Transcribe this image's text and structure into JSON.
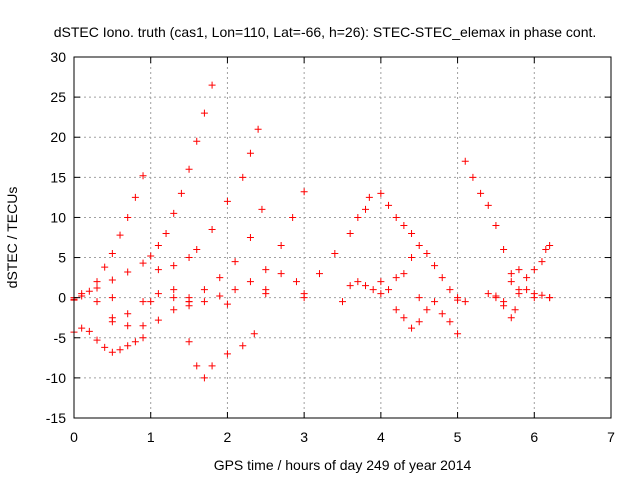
{
  "chart_data": {
    "type": "scatter",
    "title": "dSTEC Iono. truth (cas1, Lon=110, Lat=-66, h=26): STEC-STEC_elemax in phase cont.",
    "xlabel": "GPS time / hours of day 249 of year 2014",
    "ylabel": "dSTEC  / TECUs",
    "xlim": [
      0,
      7
    ],
    "ylim": [
      -15,
      30
    ],
    "xticks": [
      0,
      1,
      2,
      3,
      4,
      5,
      6,
      7
    ],
    "yticks": [
      -15,
      -10,
      -5,
      0,
      5,
      10,
      15,
      20,
      25,
      30
    ],
    "grid": true,
    "marker": "+",
    "color": "#ff0000",
    "series": [
      {
        "x": [
          0.0,
          0.1,
          0.2,
          0.3,
          0.4,
          0.5,
          0.6,
          0.7,
          0.8,
          0.9
        ],
        "y": [
          -0.3,
          0.2,
          0.8,
          2.0,
          3.8,
          5.5,
          7.8,
          10.0,
          12.5,
          15.2
        ]
      },
      {
        "x": [
          0.0,
          0.1,
          0.2,
          0.3,
          0.4,
          0.5,
          0.6,
          0.7,
          0.8,
          0.9
        ],
        "y": [
          -4.3,
          -3.8,
          -4.2,
          -5.3,
          -6.2,
          -6.8,
          -6.5,
          -6.0,
          -5.5,
          -5.0
        ]
      },
      {
        "x": [
          0.1,
          0.3,
          0.5,
          0.7,
          0.9,
          1.0,
          1.1,
          1.2,
          1.3,
          1.4,
          1.5,
          1.6,
          1.7,
          1.8
        ],
        "y": [
          0.5,
          1.2,
          2.2,
          3.2,
          4.3,
          5.2,
          6.5,
          8.0,
          10.5,
          13.0,
          16.0,
          19.5,
          23.0,
          26.5
        ]
      },
      {
        "x": [
          0.0,
          0.3,
          0.5,
          0.7,
          0.9,
          1.1,
          1.3,
          1.5
        ],
        "y": [
          0.0,
          -0.5,
          -2.5,
          -3.5,
          -3.5,
          -2.8,
          -1.5,
          -0.5
        ]
      },
      {
        "x": [
          1.1,
          1.3,
          1.5,
          1.6,
          1.8,
          2.0,
          2.2,
          2.3,
          2.4
        ],
        "y": [
          3.5,
          4.0,
          5.0,
          6.0,
          8.5,
          12.0,
          15.0,
          18.0,
          21.0
        ]
      },
      {
        "x": [
          0.5,
          0.7,
          0.9,
          1.1,
          1.3,
          1.5,
          1.7,
          1.9,
          2.1,
          2.3,
          2.45
        ],
        "y": [
          -3.0,
          -2.0,
          -0.5,
          0.5,
          0.0,
          -0.5,
          1.0,
          2.5,
          4.5,
          7.5,
          11.0
        ]
      },
      {
        "x": [
          1.5,
          1.6,
          1.7,
          1.8,
          2.0,
          2.2,
          2.35
        ],
        "y": [
          -5.5,
          -8.5,
          -10.0,
          -8.5,
          -7.0,
          -6.0,
          -4.5
        ]
      },
      {
        "x": [
          1.3,
          1.5,
          1.7,
          1.9,
          2.1,
          2.3,
          2.5,
          2.7,
          2.85,
          3.0
        ],
        "y": [
          1.0,
          0.0,
          -0.5,
          0.2,
          1.0,
          2.0,
          3.5,
          6.5,
          10.0,
          13.2
        ]
      },
      {
        "x": [
          0.0,
          0.5,
          1.0,
          1.5,
          2.0,
          2.5,
          3.0,
          3.5,
          4.0,
          4.5,
          5.0,
          5.5,
          6.0,
          6.2
        ],
        "y": [
          -0.2,
          0.0,
          -0.5,
          -1.0,
          -0.8,
          0.5,
          0.0,
          -0.5,
          0.5,
          0.0,
          -0.3,
          0.2,
          0.5,
          0.0
        ]
      },
      {
        "x": [
          2.5,
          2.7,
          2.9,
          3.0,
          3.2,
          3.4,
          3.6,
          3.7,
          3.8,
          3.85
        ],
        "y": [
          1.0,
          3.0,
          2.0,
          0.5,
          3.0,
          5.5,
          8.0,
          10.0,
          11.0,
          12.5
        ]
      },
      {
        "x": [
          4.0,
          4.1,
          4.2,
          4.3,
          4.4,
          4.5,
          4.6,
          4.7,
          4.8,
          4.9,
          5.0,
          5.1
        ],
        "y": [
          13.0,
          11.5,
          10.0,
          9.0,
          8.0,
          6.5,
          5.5,
          4.0,
          2.5,
          1.0,
          0.0,
          -0.5
        ]
      },
      {
        "x": [
          4.2,
          4.3,
          4.4,
          4.5,
          4.6,
          4.7,
          4.8,
          4.9,
          5.0
        ],
        "y": [
          -1.5,
          -2.5,
          -3.8,
          -3.0,
          -1.5,
          -0.5,
          -2.0,
          -3.0,
          -4.5
        ]
      },
      {
        "x": [
          3.6,
          3.7,
          3.8,
          3.9,
          4.0,
          4.1,
          4.2,
          4.3,
          4.4
        ],
        "y": [
          1.5,
          2.0,
          1.5,
          1.0,
          2.0,
          1.0,
          2.5,
          3.0,
          5.0
        ]
      },
      {
        "x": [
          5.1,
          5.2,
          5.3,
          5.4,
          5.5,
          5.6,
          5.7,
          5.8
        ],
        "y": [
          17.0,
          15.0,
          13.0,
          11.5,
          9.0,
          6.0,
          3.0,
          0.5
        ]
      },
      {
        "x": [
          5.6,
          5.7,
          5.75,
          5.8,
          5.9,
          6.0,
          6.1,
          6.15,
          6.2
        ],
        "y": [
          -1.0,
          -2.5,
          -1.5,
          1.0,
          2.5,
          3.5,
          4.5,
          6.0,
          6.5
        ]
      },
      {
        "x": [
          5.4,
          5.5,
          5.6,
          5.7,
          5.8,
          5.9,
          6.0,
          6.1,
          6.2
        ],
        "y": [
          0.5,
          0.0,
          -0.5,
          2.0,
          3.5,
          1.0,
          0.0,
          0.3,
          0.0
        ]
      }
    ]
  }
}
